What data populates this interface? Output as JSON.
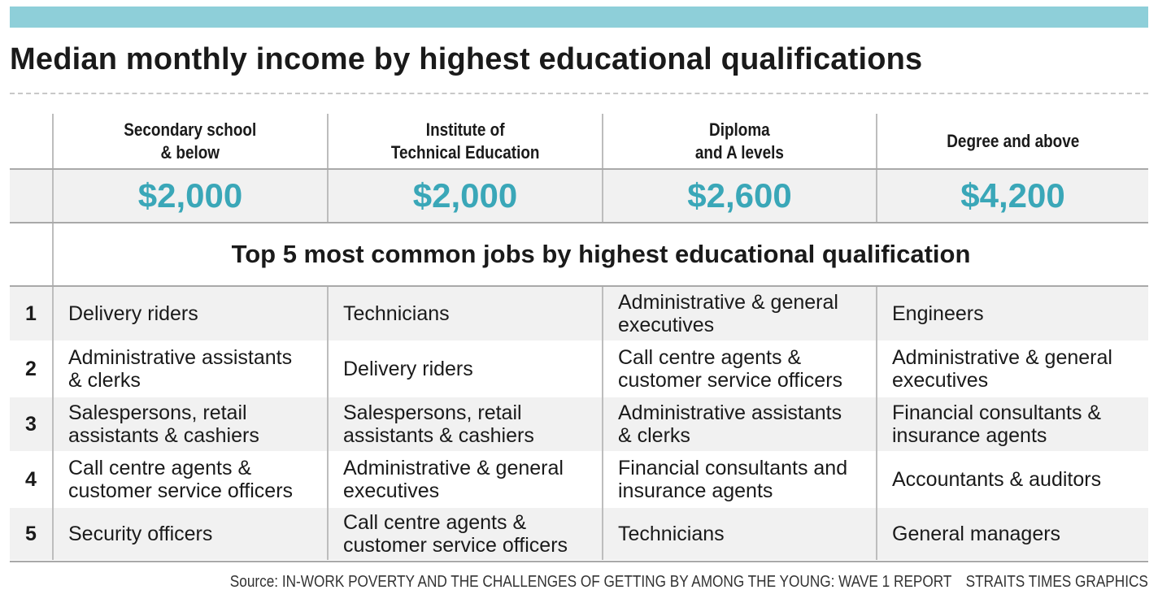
{
  "title": "Median monthly income by highest educational qualifications",
  "colors": {
    "accent_bar": "#8ecfd9",
    "income_value": "#3aa7b8",
    "row_shade": "#f1f1f1"
  },
  "chart_data": {
    "type": "table",
    "title": "Median monthly income by highest educational qualifications",
    "columns": [
      "Secondary school\n& below",
      "Institute of\nTechnical Education",
      "Diploma\nand A levels",
      "Degree and above"
    ],
    "median_monthly_income": [
      "$2,000",
      "$2,000",
      "$2,600",
      "$4,200"
    ],
    "jobs_heading": "Top 5 most common jobs by highest educational qualification",
    "rows": [
      {
        "rank": "1",
        "jobs": [
          "Delivery riders",
          "Technicians",
          "Administrative & general\nexecutives",
          "Engineers"
        ]
      },
      {
        "rank": "2",
        "jobs": [
          "Administrative assistants\n& clerks",
          "Delivery riders",
          "Call centre agents &\ncustomer service officers",
          "Administrative & general\nexecutives"
        ]
      },
      {
        "rank": "3",
        "jobs": [
          "Salespersons, retail\nassistants & cashiers",
          "Salespersons, retail\nassistants & cashiers",
          "Administrative assistants\n& clerks",
          "Financial consultants &\ninsurance agents"
        ]
      },
      {
        "rank": "4",
        "jobs": [
          "Call centre agents &\ncustomer service officers",
          "Administrative & general\nexecutives",
          "Financial consultants and\ninsurance agents",
          "Accountants & auditors"
        ]
      },
      {
        "rank": "5",
        "jobs": [
          "Security officers",
          "Call centre agents &\ncustomer service officers",
          "Technicians",
          "General managers"
        ]
      }
    ]
  },
  "source": "Source: IN-WORK POVERTY AND THE CHALLENGES OF GETTING BY AMONG THE YOUNG: WAVE 1 REPORT",
  "credit": "STRAITS TIMES GRAPHICS"
}
